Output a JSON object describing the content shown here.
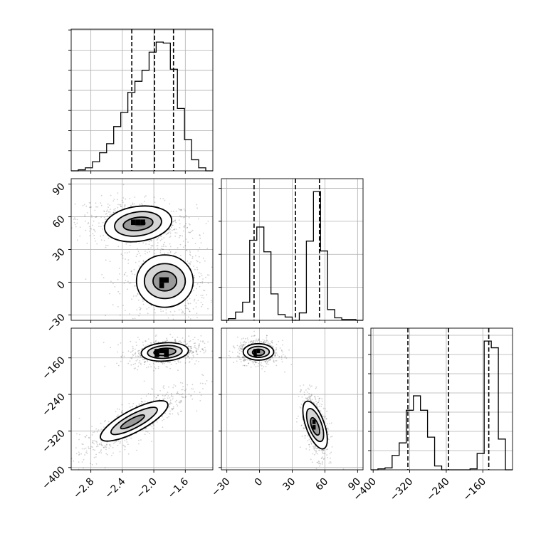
{
  "chart_data": {
    "type": "corner",
    "grid": true,
    "parameters": [
      {
        "range": [
          -3.05,
          -1.25
        ],
        "ticks": [
          -2.8,
          -2.4,
          -2.0,
          -1.6
        ],
        "tick_labels": [
          "−2.8",
          "−2.4",
          "−2.0",
          "−1.6"
        ],
        "quantiles": [
          -2.28,
          -1.99,
          -1.75
        ],
        "histogram": {
          "edges": [
            -3.05,
            -2.96,
            -2.87,
            -2.78,
            -2.69,
            -2.6,
            -2.51,
            -2.42,
            -2.33,
            -2.24,
            -2.15,
            -2.06,
            -1.97,
            -1.88,
            -1.79,
            -1.7,
            -1.61,
            -1.52,
            -1.43,
            -1.34,
            -1.25
          ],
          "counts": [
            0,
            1,
            3,
            9,
            18,
            27,
            44,
            58,
            78,
            89,
            100,
            118,
            128,
            127,
            101,
            62,
            31,
            11,
            3,
            0
          ]
        }
      },
      {
        "range": [
          -35,
          95
        ],
        "ticks": [
          -30,
          0,
          30,
          60,
          90
        ],
        "tick_labels": [
          "−30",
          "0",
          "30",
          "60",
          "90"
        ],
        "quantiles": [
          -5,
          33,
          55
        ],
        "histogram": {
          "edges": [
            -35,
            -28.5,
            -22,
            -15.5,
            -9,
            -2.5,
            4,
            10.5,
            17,
            23.5,
            30,
            36.5,
            43,
            49.5,
            56,
            62.5,
            69,
            75.5,
            82,
            88.5,
            95
          ],
          "counts": [
            0,
            2,
            10,
            22,
            97,
            113,
            83,
            32,
            7,
            4,
            0,
            9,
            96,
            156,
            84,
            13,
            3,
            1,
            1,
            0
          ]
        }
      },
      {
        "range": [
          -405,
          -95
        ],
        "ticks": [
          -400,
          -320,
          -240,
          -160
        ],
        "tick_labels": [
          "−400",
          "−320",
          "−240",
          "−160"
        ],
        "quantiles": [
          -324,
          -235,
          -147
        ],
        "histogram": {
          "edges": [
            -405,
            -389.5,
            -374,
            -358.5,
            -343,
            -327.5,
            -312,
            -296.5,
            -281,
            -265.5,
            -250,
            -234.5,
            -219,
            -203.5,
            -188,
            -172.5,
            -157,
            -141.5,
            -126,
            -110.5,
            -95
          ],
          "counts": [
            0,
            1,
            2,
            15,
            28,
            62,
            77,
            62,
            34,
            4,
            0,
            0,
            0,
            0,
            1,
            17,
            134,
            127,
            32,
            0
          ]
        }
      }
    ],
    "pairs": [
      {
        "x": 0,
        "y": 1,
        "clusters": [
          {
            "mean": [
              -2.22,
              54
            ],
            "sd": [
              0.28,
              8
            ],
            "rho": -0.2,
            "weight": 0.5
          },
          {
            "mean": [
              -1.85,
              0
            ],
            "sd": [
              0.2,
              13
            ],
            "rho": 0.0,
            "weight": 0.5
          }
        ],
        "contours": [
          {
            "cx": -2.2,
            "cy": 53.5,
            "rx": 0.43,
            "ry": 16,
            "angle": -8,
            "rank": 1
          },
          {
            "cx": -2.2,
            "cy": 53.5,
            "rx": 0.3,
            "ry": 11,
            "angle": -8,
            "rank": 2
          },
          {
            "cx": -2.2,
            "cy": 53.5,
            "rx": 0.19,
            "ry": 6,
            "angle": -8,
            "rank": 3
          },
          {
            "cx": -2.18,
            "cy": 54,
            "rx": 0.08,
            "ry": 2.8,
            "angle": 0,
            "rank": 4
          },
          {
            "cx": -1.86,
            "cy": 1,
            "rx": 0.36,
            "ry": 24,
            "angle": 0,
            "rank": 1
          },
          {
            "cx": -1.86,
            "cy": 1,
            "rx": 0.26,
            "ry": 16,
            "angle": 0,
            "rank": 2
          },
          {
            "cx": -1.86,
            "cy": 1,
            "rx": 0.15,
            "ry": 9,
            "angle": 0,
            "rank": 3
          }
        ],
        "dense_cells": [
          [
            -2.26,
            55,
            0.06,
            5
          ],
          [
            -2.2,
            55,
            0.06,
            5
          ],
          [
            -2.14,
            55,
            0.06,
            5
          ],
          [
            -1.9,
            2,
            0.06,
            5
          ],
          [
            -1.84,
            2,
            0.06,
            5
          ],
          [
            -1.9,
            -3,
            0.06,
            5
          ]
        ]
      },
      {
        "x": 0,
        "y": 2,
        "clusters": [
          {
            "mean": [
              -1.86,
              -147
            ],
            "sd": [
              0.17,
              11
            ],
            "rho": 0.2,
            "weight": 0.5
          },
          {
            "mean": [
              -2.25,
              -300
            ],
            "sd": [
              0.26,
              30
            ],
            "rho": 0.85,
            "weight": 0.5
          }
        ],
        "contours": [
          {
            "cx": -1.86,
            "cy": -147,
            "rx": 0.3,
            "ry": 20,
            "angle": -4,
            "rank": 1
          },
          {
            "cx": -1.86,
            "cy": -147,
            "rx": 0.22,
            "ry": 14,
            "angle": -4,
            "rank": 2
          },
          {
            "cx": -1.86,
            "cy": -147,
            "rx": 0.14,
            "ry": 8,
            "angle": -4,
            "rank": 3
          },
          {
            "cx": -2.25,
            "cy": -298,
            "rx": 0.48,
            "ry": 24,
            "angle": -28,
            "rank": 1
          },
          {
            "cx": -2.25,
            "cy": -298,
            "rx": 0.33,
            "ry": 15,
            "angle": -28,
            "rank": 2
          },
          {
            "cx": -2.27,
            "cy": -300,
            "rx": 0.17,
            "ry": 7,
            "angle": -28,
            "rank": 3
          }
        ],
        "dense_cells": [
          [
            -1.96,
            -145,
            0.06,
            9
          ],
          [
            -1.9,
            -145,
            0.06,
            9
          ],
          [
            -1.84,
            -145,
            0.06,
            9
          ],
          [
            -1.96,
            -154,
            0.06,
            9
          ],
          [
            -1.84,
            -154,
            0.06,
            9
          ]
        ]
      },
      {
        "x": 1,
        "y": 2,
        "clusters": [
          {
            "mean": [
              -1,
              -147
            ],
            "sd": [
              7,
              10
            ],
            "rho": -0.1,
            "weight": 0.5
          },
          {
            "mean": [
              51,
              -307
            ],
            "sd": [
              4.5,
              26
            ],
            "rho": -0.45,
            "weight": 0.5
          }
        ],
        "contours": [
          {
            "cx": -1,
            "cy": -147,
            "rx": 14,
            "ry": 18,
            "angle": 0,
            "rank": 1
          },
          {
            "cx": -1,
            "cy": -147,
            "rx": 10,
            "ry": 12,
            "angle": 0,
            "rank": 2
          },
          {
            "cx": -1,
            "cy": -148,
            "rx": 5.5,
            "ry": 7,
            "angle": 0,
            "rank": 3
          },
          {
            "cx": 51,
            "cy": -307,
            "rx": 8.5,
            "ry": 55,
            "angle": -20,
            "rank": 1
          },
          {
            "cx": 51,
            "cy": -307,
            "rx": 6,
            "ry": 38,
            "angle": -20,
            "rank": 2
          },
          {
            "cx": 51,
            "cy": -310,
            "rx": 3.2,
            "ry": 20,
            "angle": -20,
            "rank": 3
          }
        ],
        "dense_cells": [
          [
            -4,
            -145,
            3,
            9
          ],
          [
            -1,
            -145,
            3,
            9
          ],
          [
            -4,
            -154,
            3,
            9
          ],
          [
            50,
            -300,
            3,
            10
          ],
          [
            50,
            -312,
            3,
            10
          ]
        ]
      }
    ]
  }
}
